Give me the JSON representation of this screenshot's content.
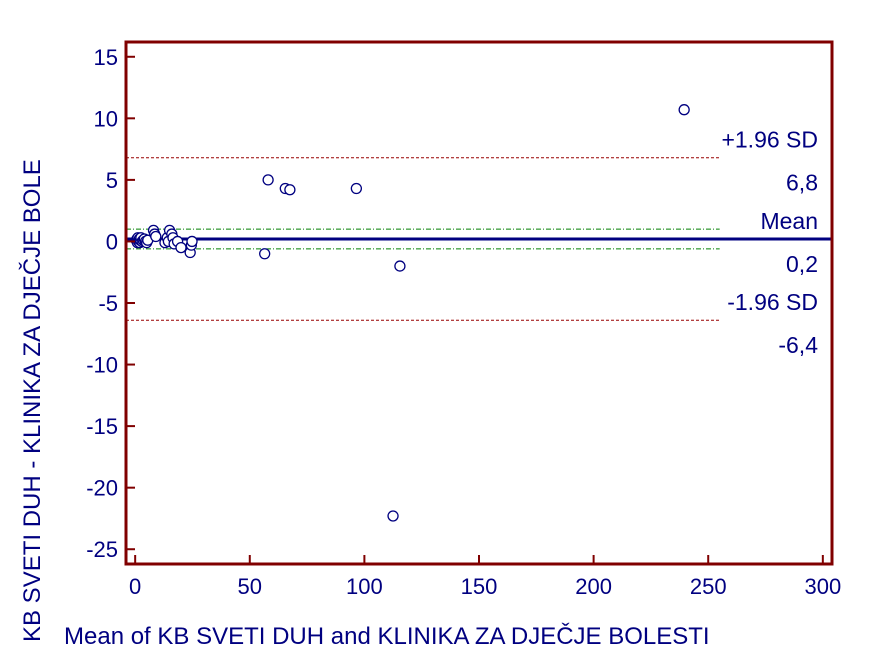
{
  "chart_data": {
    "type": "scatter",
    "title": "",
    "xlabel": "Mean of KB SVETI DUH and KLINIKA ZA DJEČJE BOLESTI",
    "ylabel": "KB SVETI DUH - KLINIKA ZA DJEČJE BOLE",
    "xlim": [
      -4,
      304
    ],
    "ylim": [
      -26.2,
      16.2
    ],
    "x_ticks": [
      0,
      50,
      100,
      150,
      200,
      250,
      300
    ],
    "y_ticks": [
      15,
      10,
      5,
      0,
      -5,
      -10,
      -15,
      -20,
      -25
    ],
    "grid": false,
    "colors": {
      "frame": "#800000",
      "text": "#000080",
      "mean_line": "#000080",
      "loa_line": "#990000",
      "ci_line": "#008000",
      "points": "#000080"
    },
    "reference_lines": [
      {
        "name": "upper_loa",
        "y": 6.8,
        "label_top": "+1.96 SD",
        "label_bottom": "6,8"
      },
      {
        "name": "mean",
        "y": 0.2,
        "label_top": "Mean",
        "label_bottom": "0,2"
      },
      {
        "name": "lower_loa",
        "y": -6.4,
        "label_top": "-1.96 SD",
        "label_bottom": "-6,4"
      }
    ],
    "ci_lines": [
      1.0,
      -0.6
    ],
    "points": [
      {
        "x": 0.5,
        "y": 0.1
      },
      {
        "x": 0.8,
        "y": 0.2
      },
      {
        "x": 1.0,
        "y": -0.1
      },
      {
        "x": 1.2,
        "y": 0.3
      },
      {
        "x": 1.5,
        "y": 0.0
      },
      {
        "x": 1.8,
        "y": 0.2
      },
      {
        "x": 2.0,
        "y": -0.1
      },
      {
        "x": 2.2,
        "y": 0.1
      },
      {
        "x": 2.5,
        "y": 0.3
      },
      {
        "x": 3.0,
        "y": 0.0
      },
      {
        "x": 3.5,
        "y": 0.1
      },
      {
        "x": 4.0,
        "y": 0.2
      },
      {
        "x": 4.5,
        "y": 0.0
      },
      {
        "x": 5.0,
        "y": -0.1
      },
      {
        "x": 5.5,
        "y": 0.1
      },
      {
        "x": 8.0,
        "y": 0.9
      },
      {
        "x": 8.5,
        "y": 0.6
      },
      {
        "x": 9.0,
        "y": 0.4
      },
      {
        "x": 13.0,
        "y": -0.1
      },
      {
        "x": 14.0,
        "y": 0.3
      },
      {
        "x": 14.5,
        "y": 0.0
      },
      {
        "x": 15.0,
        "y": 0.9
      },
      {
        "x": 16.0,
        "y": 0.6
      },
      {
        "x": 16.5,
        "y": 0.3
      },
      {
        "x": 17.0,
        "y": -0.2
      },
      {
        "x": 18.5,
        "y": 0.0
      },
      {
        "x": 20.0,
        "y": -0.5
      },
      {
        "x": 24.0,
        "y": -0.9
      },
      {
        "x": 24.5,
        "y": -0.3
      },
      {
        "x": 24.8,
        "y": 0.0
      },
      {
        "x": 56.5,
        "y": -1.0
      },
      {
        "x": 58.0,
        "y": 5.0
      },
      {
        "x": 65.5,
        "y": 4.3
      },
      {
        "x": 67.5,
        "y": 4.2
      },
      {
        "x": 96.5,
        "y": 4.3
      },
      {
        "x": 112.5,
        "y": -22.3
      },
      {
        "x": 115.5,
        "y": -2.0
      },
      {
        "x": 239.5,
        "y": 10.7
      }
    ]
  }
}
